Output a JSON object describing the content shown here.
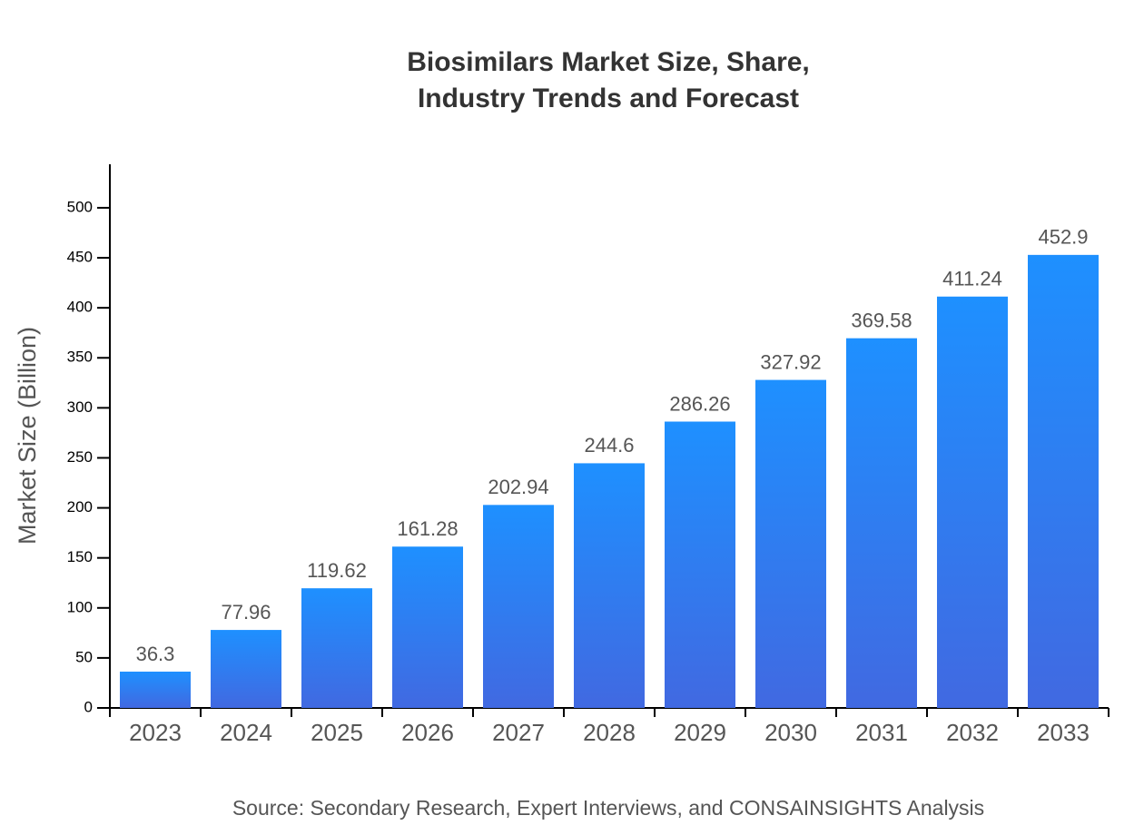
{
  "chart_data": {
    "type": "bar",
    "title": [
      "Biosimilars Market Size, Share,",
      "Industry Trends and Forecast"
    ],
    "y_label": "Market Size (Billion)",
    "source": "Source: Secondary Research, Expert Interviews, and CONSAINSIGHTS Analysis",
    "categories": [
      "2023",
      "2024",
      "2025",
      "2026",
      "2027",
      "2028",
      "2029",
      "2030",
      "2031",
      "2032",
      "2033"
    ],
    "values": [
      36.3,
      77.96,
      119.62,
      161.28,
      202.94,
      244.6,
      286.26,
      327.92,
      369.58,
      411.24,
      452.9
    ],
    "color": [
      "#1e90ff",
      "#4169e1"
    ],
    "ylim": [
      0,
      543.5
    ],
    "yticks": [
      0,
      50,
      100,
      150,
      200,
      250,
      300,
      350,
      400,
      450,
      500
    ]
  }
}
